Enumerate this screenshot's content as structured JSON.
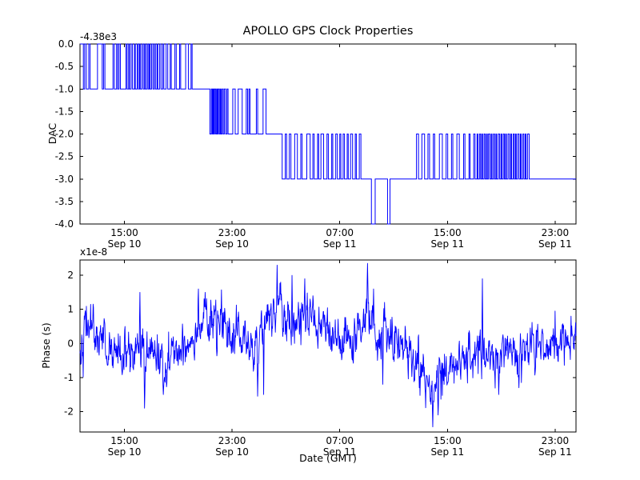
{
  "figure": {
    "title": "APOLLO GPS Clock Properties",
    "xlabel": "Date (GMT)",
    "background_color": "#ffffff",
    "axis_color": "#000000",
    "line_color": "#0000ff"
  },
  "chart_data": [
    {
      "type": "line",
      "name": "dac",
      "ylabel": "DAC",
      "offset_text": "-4.38e3",
      "line_color": "#0000ff",
      "x_unit": "hours since Sep 10 00:00 GMT",
      "xlim_hours": [
        11.7,
        48.55
      ],
      "ylim": [
        -4.0,
        0.0
      ],
      "ytick_values": [
        0.0,
        -0.5,
        -1.0,
        -1.5,
        -2.0,
        -2.5,
        -3.0,
        -3.5,
        -4.0
      ],
      "yticklabels": [
        "0.0",
        "-0.5",
        "-1.0",
        "-1.5",
        "-2.0",
        "-2.5",
        "-3.0",
        "-3.5",
        "-4.0"
      ],
      "xticks": [
        {
          "t": 15,
          "time": "15:00",
          "date": "Sep 10"
        },
        {
          "t": 23,
          "time": "23:00",
          "date": "Sep 10"
        },
        {
          "t": 31,
          "time": "07:00",
          "date": "Sep 11"
        },
        {
          "t": 39,
          "time": "15:00",
          "date": "Sep 11"
        },
        {
          "t": 47,
          "time": "23:00",
          "date": "Sep 11"
        }
      ],
      "step": {
        "base": [
          [
            11.7,
            0
          ],
          [
            11.95,
            -1
          ],
          [
            21.35,
            -2
          ],
          [
            26.72,
            -3
          ]
        ],
        "end": 48.55,
        "spikes_up": [
          [
            12.05,
            0.12
          ],
          [
            12.35,
            0.1
          ],
          [
            13.0,
            0.35
          ],
          [
            13.45,
            0.1
          ],
          [
            14.15,
            0.1
          ],
          [
            14.42,
            0.08
          ],
          [
            14.6,
            0.1
          ],
          [
            15.12,
            0.08
          ],
          [
            15.32,
            0.06
          ],
          [
            15.5,
            0.1
          ],
          [
            15.75,
            0.06
          ],
          [
            15.95,
            0.08
          ],
          [
            16.12,
            0.06
          ],
          [
            16.3,
            0.1
          ],
          [
            16.5,
            0.06
          ],
          [
            16.68,
            0.08
          ],
          [
            16.85,
            0.06
          ],
          [
            17.02,
            0.1
          ],
          [
            17.22,
            0.08
          ],
          [
            17.42,
            0.06
          ],
          [
            17.62,
            0.1
          ],
          [
            17.85,
            0.08
          ],
          [
            18.1,
            0.12
          ],
          [
            18.4,
            0.08
          ],
          [
            18.75,
            0.1
          ],
          [
            19.1,
            0.08
          ],
          [
            19.55,
            0.2
          ],
          [
            19.95,
            0.08
          ],
          [
            21.45,
            0.07
          ],
          [
            21.58,
            0.06
          ],
          [
            21.7,
            0.08
          ],
          [
            21.85,
            0.06
          ],
          [
            21.97,
            0.08
          ],
          [
            22.12,
            0.06
          ],
          [
            22.26,
            0.08
          ],
          [
            22.42,
            0.1
          ],
          [
            22.62,
            0.08
          ],
          [
            23.05,
            0.18
          ],
          [
            23.45,
            0.3
          ],
          [
            24.05,
            0.1
          ],
          [
            24.25,
            0.08
          ],
          [
            24.8,
            0.1
          ],
          [
            25.3,
            0.22
          ],
          [
            26.95,
            0.1
          ],
          [
            27.25,
            0.12
          ],
          [
            27.65,
            0.2
          ],
          [
            28.1,
            0.1
          ],
          [
            28.55,
            0.25
          ],
          [
            29.0,
            0.1
          ],
          [
            29.35,
            0.08
          ],
          [
            29.6,
            0.2
          ],
          [
            30.05,
            0.1
          ],
          [
            30.4,
            0.08
          ],
          [
            30.7,
            0.12
          ],
          [
            31.0,
            0.08
          ],
          [
            31.25,
            0.1
          ],
          [
            31.55,
            0.08
          ],
          [
            31.8,
            0.15
          ],
          [
            32.15,
            0.08
          ],
          [
            32.45,
            0.12
          ],
          [
            36.7,
            0.15
          ],
          [
            37.1,
            0.2
          ],
          [
            37.55,
            0.12
          ],
          [
            37.95,
            0.1
          ],
          [
            38.4,
            0.22
          ],
          [
            38.9,
            0.12
          ],
          [
            39.3,
            0.1
          ],
          [
            39.7,
            0.18
          ],
          [
            40.2,
            0.1
          ],
          [
            40.6,
            0.08
          ],
          [
            40.95,
            0.1
          ],
          [
            41.2,
            0.06
          ],
          [
            41.38,
            0.08
          ],
          [
            41.55,
            0.06
          ],
          [
            41.72,
            0.08
          ],
          [
            41.9,
            0.06
          ],
          [
            42.05,
            0.1
          ],
          [
            42.25,
            0.06
          ],
          [
            42.42,
            0.08
          ],
          [
            42.6,
            0.06
          ],
          [
            42.78,
            0.1
          ],
          [
            42.98,
            0.06
          ],
          [
            43.15,
            0.08
          ],
          [
            43.32,
            0.06
          ],
          [
            43.5,
            0.1
          ],
          [
            43.7,
            0.06
          ],
          [
            43.88,
            0.08
          ],
          [
            44.05,
            0.06
          ],
          [
            44.22,
            0.1
          ],
          [
            44.42,
            0.06
          ],
          [
            44.6,
            0.08
          ],
          [
            44.78,
            0.06
          ],
          [
            44.95,
            0.12
          ]
        ],
        "dips_down": [
          [
            33.35,
            0.28
          ],
          [
            34.55,
            0.18
          ]
        ]
      }
    },
    {
      "type": "line",
      "name": "phase",
      "ylabel": "Phase (s)",
      "offset_text": "x1e-8",
      "scale_factor": "1e-8",
      "line_color": "#0000ff",
      "x_unit": "hours since Sep 10 00:00 GMT",
      "xlim_hours": [
        11.7,
        48.55
      ],
      "ylim": [
        -2.6,
        2.45
      ],
      "ytick_values": [
        2,
        1,
        0,
        -1,
        -2
      ],
      "yticklabels": [
        "2",
        "1",
        "0",
        "-1",
        "-2"
      ],
      "xticks": [
        {
          "t": 15,
          "time": "15:00",
          "date": "Sep 10"
        },
        {
          "t": 23,
          "time": "23:00",
          "date": "Sep 10"
        },
        {
          "t": 31,
          "time": "07:00",
          "date": "Sep 11"
        },
        {
          "t": 39,
          "time": "15:00",
          "date": "Sep 11"
        },
        {
          "t": 47,
          "time": "23:00",
          "date": "Sep 11"
        }
      ],
      "noise_series": {
        "seed": 42,
        "n": 1400,
        "sd": 0.3,
        "ar": 0.5,
        "trend": [
          [
            11.7,
            0.0
          ],
          [
            12.3,
            0.6
          ],
          [
            13.0,
            0.3
          ],
          [
            13.8,
            -0.2
          ],
          [
            15.0,
            -0.35
          ],
          [
            16.5,
            -0.3
          ],
          [
            18.0,
            -0.45
          ],
          [
            19.2,
            -0.2
          ],
          [
            20.2,
            0.35
          ],
          [
            20.9,
            0.8
          ],
          [
            21.8,
            0.5
          ],
          [
            22.8,
            0.35
          ],
          [
            23.8,
            0.2
          ],
          [
            24.6,
            -0.3
          ],
          [
            25.3,
            0.5
          ],
          [
            26.3,
            1.0
          ],
          [
            27.2,
            0.6
          ],
          [
            28.2,
            0.8
          ],
          [
            29.0,
            0.45
          ],
          [
            29.8,
            0.5
          ],
          [
            30.6,
            0.05
          ],
          [
            31.6,
            -0.15
          ],
          [
            32.6,
            0.3
          ],
          [
            33.1,
            1.0
          ],
          [
            33.7,
            0.25
          ],
          [
            34.6,
            0.3
          ],
          [
            35.6,
            -0.1
          ],
          [
            36.6,
            -0.4
          ],
          [
            37.4,
            -1.2
          ],
          [
            38.0,
            -1.5
          ],
          [
            38.7,
            -0.8
          ],
          [
            39.6,
            -0.55
          ],
          [
            40.6,
            -0.4
          ],
          [
            41.6,
            -0.3
          ],
          [
            42.6,
            -0.35
          ],
          [
            43.6,
            -0.25
          ],
          [
            44.6,
            -0.3
          ],
          [
            45.6,
            -0.15
          ],
          [
            46.6,
            -0.1
          ],
          [
            47.6,
            0.05
          ],
          [
            48.5,
            0.4
          ]
        ],
        "spikes": [
          [
            16.15,
            1.5
          ],
          [
            16.5,
            -1.9
          ],
          [
            17.9,
            -1.5
          ],
          [
            20.5,
            1.6
          ],
          [
            21.0,
            1.5
          ],
          [
            24.9,
            -1.55
          ],
          [
            25.35,
            -1.5
          ],
          [
            26.35,
            2.3
          ],
          [
            26.6,
            1.8
          ],
          [
            27.45,
            2.0
          ],
          [
            28.4,
            1.9
          ],
          [
            33.05,
            2.35
          ],
          [
            33.5,
            1.6
          ],
          [
            34.2,
            -1.2
          ],
          [
            36.9,
            -1.3
          ],
          [
            37.9,
            -2.45
          ],
          [
            38.3,
            -2.1
          ],
          [
            41.6,
            1.9
          ],
          [
            42.8,
            -1.5
          ],
          [
            44.3,
            -1.3
          ]
        ]
      }
    }
  ]
}
